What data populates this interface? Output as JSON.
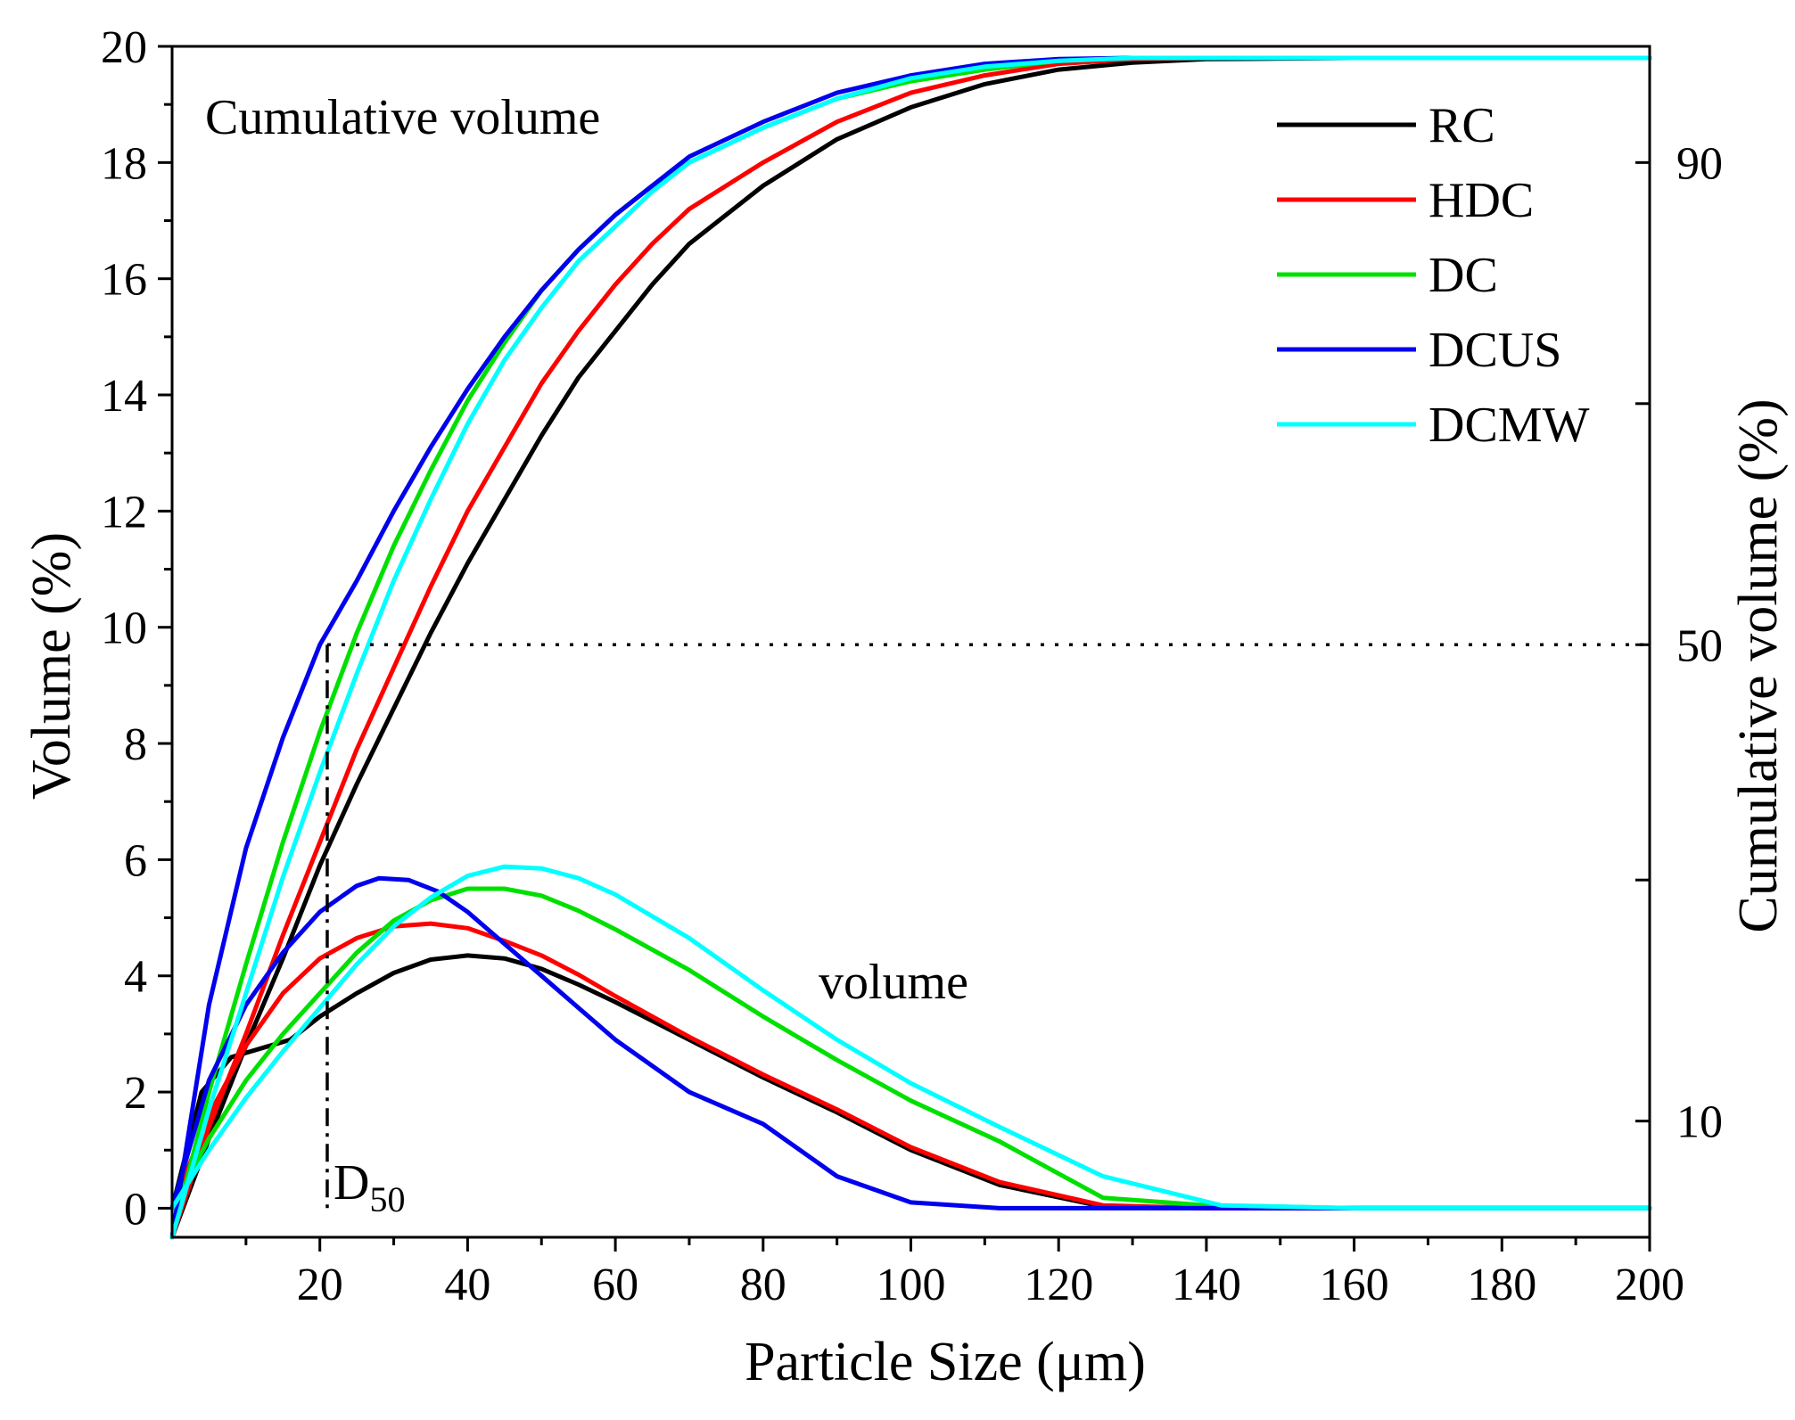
{
  "chart_data": {
    "type": "line",
    "xlabel": "Particle Size (μm)",
    "ylabel": "Volume (%)",
    "y2label": "Cumulative volume (%)",
    "xlim": [
      0,
      200
    ],
    "ylim": [
      -0.5,
      20
    ],
    "x_ticks": [
      20,
      40,
      60,
      80,
      100,
      120,
      140,
      160,
      180,
      200
    ],
    "y_ticks": [
      0,
      2,
      4,
      6,
      8,
      10,
      12,
      14,
      16,
      18,
      20
    ],
    "y2_ticks": [
      {
        "label": "90",
        "at_left": 18.0
      },
      {
        "label": "50",
        "at_left": 9.7
      },
      {
        "label": "10",
        "at_left": 1.5
      }
    ],
    "annotations": {
      "cumulative": "Cumulative volume",
      "volume": "volume",
      "d50_main": "D",
      "d50_sub": "50"
    },
    "d50_x": 21,
    "d50_level": 9.7,
    "legend_position": "top-right",
    "series": [
      {
        "name": "RC",
        "color": "#000000",
        "cumulative": [
          [
            0,
            -0.5
          ],
          [
            5,
            1.2
          ],
          [
            10,
            2.8
          ],
          [
            15,
            4.3
          ],
          [
            20,
            5.9
          ],
          [
            25,
            7.3
          ],
          [
            30,
            8.6
          ],
          [
            35,
            9.9
          ],
          [
            40,
            11.1
          ],
          [
            45,
            12.2
          ],
          [
            50,
            13.3
          ],
          [
            55,
            14.3
          ],
          [
            60,
            15.1
          ],
          [
            65,
            15.9
          ],
          [
            70,
            16.6
          ],
          [
            80,
            17.6
          ],
          [
            90,
            18.4
          ],
          [
            100,
            18.95
          ],
          [
            110,
            19.35
          ],
          [
            120,
            19.6
          ],
          [
            130,
            19.72
          ],
          [
            140,
            19.78
          ],
          [
            160,
            19.8
          ],
          [
            200,
            19.8
          ]
        ],
        "volume": [
          [
            0,
            0
          ],
          [
            4,
            2.0
          ],
          [
            8,
            2.6
          ],
          [
            12,
            2.75
          ],
          [
            16,
            2.9
          ],
          [
            20,
            3.3
          ],
          [
            25,
            3.7
          ],
          [
            30,
            4.05
          ],
          [
            35,
            4.28
          ],
          [
            40,
            4.35
          ],
          [
            45,
            4.3
          ],
          [
            50,
            4.12
          ],
          [
            55,
            3.85
          ],
          [
            60,
            3.55
          ],
          [
            70,
            2.9
          ],
          [
            80,
            2.25
          ],
          [
            90,
            1.65
          ],
          [
            100,
            1.0
          ],
          [
            112,
            0.4
          ],
          [
            126,
            0.03
          ],
          [
            140,
            0.0
          ],
          [
            200,
            0.0
          ]
        ]
      },
      {
        "name": "HDC",
        "color": "#ff0000",
        "cumulative": [
          [
            0,
            -0.5
          ],
          [
            5,
            1.4
          ],
          [
            10,
            3.0
          ],
          [
            15,
            4.7
          ],
          [
            20,
            6.3
          ],
          [
            25,
            7.9
          ],
          [
            30,
            9.3
          ],
          [
            35,
            10.7
          ],
          [
            40,
            12.0
          ],
          [
            45,
            13.1
          ],
          [
            50,
            14.2
          ],
          [
            55,
            15.1
          ],
          [
            60,
            15.9
          ],
          [
            65,
            16.6
          ],
          [
            70,
            17.2
          ],
          [
            80,
            18.0
          ],
          [
            90,
            18.7
          ],
          [
            100,
            19.2
          ],
          [
            110,
            19.5
          ],
          [
            120,
            19.7
          ],
          [
            130,
            19.78
          ],
          [
            140,
            19.8
          ],
          [
            200,
            19.8
          ]
        ],
        "volume": [
          [
            0,
            0
          ],
          [
            5,
            1.6
          ],
          [
            10,
            2.8
          ],
          [
            15,
            3.7
          ],
          [
            20,
            4.3
          ],
          [
            25,
            4.65
          ],
          [
            30,
            4.85
          ],
          [
            35,
            4.9
          ],
          [
            40,
            4.82
          ],
          [
            45,
            4.6
          ],
          [
            50,
            4.35
          ],
          [
            55,
            4.02
          ],
          [
            60,
            3.65
          ],
          [
            70,
            2.95
          ],
          [
            80,
            2.3
          ],
          [
            90,
            1.7
          ],
          [
            100,
            1.05
          ],
          [
            112,
            0.45
          ],
          [
            126,
            0.05
          ],
          [
            140,
            0.0
          ],
          [
            200,
            0.0
          ]
        ]
      },
      {
        "name": "DC",
        "color": "#00e000",
        "cumulative": [
          [
            0,
            -0.5
          ],
          [
            5,
            2.0
          ],
          [
            10,
            4.2
          ],
          [
            15,
            6.3
          ],
          [
            20,
            8.2
          ],
          [
            25,
            9.9
          ],
          [
            30,
            11.4
          ],
          [
            35,
            12.7
          ],
          [
            40,
            13.9
          ],
          [
            45,
            14.9
          ],
          [
            50,
            15.8
          ],
          [
            55,
            16.5
          ],
          [
            60,
            17.1
          ],
          [
            65,
            17.6
          ],
          [
            70,
            18.0
          ],
          [
            80,
            18.6
          ],
          [
            90,
            19.1
          ],
          [
            100,
            19.4
          ],
          [
            110,
            19.6
          ],
          [
            120,
            19.75
          ],
          [
            130,
            19.8
          ],
          [
            200,
            19.8
          ]
        ],
        "volume": [
          [
            0,
            0
          ],
          [
            5,
            1.2
          ],
          [
            10,
            2.2
          ],
          [
            15,
            3.0
          ],
          [
            20,
            3.7
          ],
          [
            25,
            4.4
          ],
          [
            30,
            4.95
          ],
          [
            35,
            5.3
          ],
          [
            40,
            5.5
          ],
          [
            45,
            5.5
          ],
          [
            50,
            5.38
          ],
          [
            55,
            5.12
          ],
          [
            60,
            4.8
          ],
          [
            70,
            4.1
          ],
          [
            80,
            3.3
          ],
          [
            90,
            2.55
          ],
          [
            100,
            1.85
          ],
          [
            112,
            1.15
          ],
          [
            126,
            0.18
          ],
          [
            140,
            0.05
          ],
          [
            160,
            0.0
          ],
          [
            200,
            0.0
          ]
        ]
      },
      {
        "name": "DCUS",
        "color": "#0000ee",
        "cumulative": [
          [
            0,
            -0.5
          ],
          [
            5,
            3.5
          ],
          [
            10,
            6.2
          ],
          [
            15,
            8.1
          ],
          [
            20,
            9.7
          ],
          [
            25,
            10.8
          ],
          [
            30,
            12.0
          ],
          [
            35,
            13.1
          ],
          [
            40,
            14.1
          ],
          [
            45,
            15.0
          ],
          [
            50,
            15.8
          ],
          [
            55,
            16.5
          ],
          [
            60,
            17.1
          ],
          [
            65,
            17.6
          ],
          [
            70,
            18.1
          ],
          [
            80,
            18.7
          ],
          [
            90,
            19.2
          ],
          [
            100,
            19.5
          ],
          [
            110,
            19.7
          ],
          [
            120,
            19.78
          ],
          [
            130,
            19.8
          ],
          [
            200,
            19.8
          ]
        ],
        "volume": [
          [
            0,
            0
          ],
          [
            5,
            2.2
          ],
          [
            10,
            3.5
          ],
          [
            15,
            4.4
          ],
          [
            20,
            5.1
          ],
          [
            25,
            5.55
          ],
          [
            28,
            5.68
          ],
          [
            32,
            5.65
          ],
          [
            36,
            5.45
          ],
          [
            40,
            5.1
          ],
          [
            45,
            4.55
          ],
          [
            50,
            4.0
          ],
          [
            55,
            3.45
          ],
          [
            60,
            2.9
          ],
          [
            70,
            2.0
          ],
          [
            80,
            1.45
          ],
          [
            90,
            0.55
          ],
          [
            100,
            0.1
          ],
          [
            112,
            0.0
          ],
          [
            200,
            0.0
          ]
        ]
      },
      {
        "name": "DCMW",
        "color": "#00ffff",
        "cumulative": [
          [
            0,
            -0.5
          ],
          [
            5,
            1.7
          ],
          [
            10,
            3.7
          ],
          [
            15,
            5.7
          ],
          [
            20,
            7.5
          ],
          [
            25,
            9.2
          ],
          [
            30,
            10.8
          ],
          [
            35,
            12.2
          ],
          [
            40,
            13.5
          ],
          [
            45,
            14.6
          ],
          [
            50,
            15.5
          ],
          [
            55,
            16.3
          ],
          [
            60,
            16.9
          ],
          [
            65,
            17.5
          ],
          [
            70,
            18.0
          ],
          [
            80,
            18.6
          ],
          [
            90,
            19.1
          ],
          [
            100,
            19.45
          ],
          [
            110,
            19.65
          ],
          [
            120,
            19.75
          ],
          [
            130,
            19.8
          ],
          [
            200,
            19.8
          ]
        ],
        "volume": [
          [
            0,
            0
          ],
          [
            5,
            1.0
          ],
          [
            10,
            1.9
          ],
          [
            15,
            2.7
          ],
          [
            20,
            3.45
          ],
          [
            25,
            4.2
          ],
          [
            30,
            4.85
          ],
          [
            35,
            5.35
          ],
          [
            40,
            5.72
          ],
          [
            45,
            5.88
          ],
          [
            50,
            5.85
          ],
          [
            55,
            5.68
          ],
          [
            60,
            5.4
          ],
          [
            70,
            4.65
          ],
          [
            80,
            3.75
          ],
          [
            90,
            2.9
          ],
          [
            100,
            2.15
          ],
          [
            112,
            1.4
          ],
          [
            126,
            0.55
          ],
          [
            142,
            0.05
          ],
          [
            160,
            0.0
          ],
          [
            200,
            0.0
          ]
        ]
      }
    ]
  }
}
